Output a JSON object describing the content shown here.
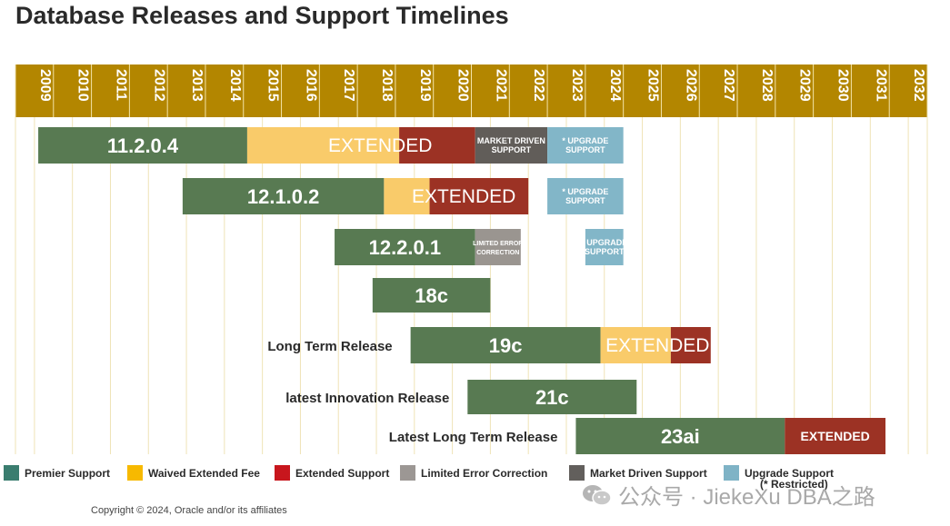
{
  "title": "Database Releases and Support Timelines",
  "copyright": "Copyright © 2024, Oracle and/or its affiliates",
  "watermark": "公众号 · JiekeXu DBA之路",
  "chart_data": {
    "type": "gantt",
    "years": [
      "2009",
      "2010",
      "2011",
      "2012",
      "2013",
      "2014",
      "2015",
      "2016",
      "2017",
      "2018",
      "2019",
      "2020",
      "2021",
      "2022",
      "2023",
      "2024",
      "2025",
      "2026",
      "2027",
      "2028",
      "2029",
      "2030",
      "2031",
      "2032"
    ],
    "colors": {
      "premier": "#587a52",
      "waived": "#f9cb6a",
      "extended": "#9c3224",
      "limited": "#9a9590",
      "market": "#615d59",
      "upgrade": "#82b6c8",
      "header": "#b38600"
    },
    "legend": [
      {
        "key": "premier",
        "label": "Premier Support",
        "color": "#3a7d6f"
      },
      {
        "key": "waived",
        "label": "Waived Extended Fee",
        "color": "#f7b900"
      },
      {
        "key": "extended",
        "label": "Extended Support",
        "color": "#c8161d"
      },
      {
        "key": "limited",
        "label": "Limited Error Correction",
        "color": "#9c9794"
      },
      {
        "key": "market",
        "label": "Market Driven Support",
        "color": "#625f5c"
      },
      {
        "key": "upgrade",
        "label": "Upgrade Support",
        "sublabel": "(* Restricted)",
        "color": "#7fb3c6"
      }
    ],
    "releases": [
      {
        "name": "11.2.0.4",
        "note": "",
        "segments": [
          {
            "type": "premier",
            "start": 2009.1,
            "end": 2014.6,
            "text": "11.2.0.4"
          },
          {
            "type": "waived",
            "start": 2014.6,
            "end": 2018.6,
            "text": ""
          },
          {
            "type": "extended",
            "start": 2018.6,
            "end": 2020.6,
            "text": ""
          },
          {
            "type": "market",
            "start": 2020.6,
            "end": 2022.5,
            "text": "MARKET DRIVEN SUPPORT"
          },
          {
            "type": "upgrade",
            "start": 2022.5,
            "end": 2024.5,
            "text": "* UPGRADE SUPPORT"
          }
        ],
        "overlay": {
          "text": "EXTENDED",
          "start": 2016.6,
          "end": 2019.6
        }
      },
      {
        "name": "12.1.0.2",
        "note": "",
        "segments": [
          {
            "type": "premier",
            "start": 2012.9,
            "end": 2018.2,
            "text": "12.1.0.2"
          },
          {
            "type": "waived",
            "start": 2018.2,
            "end": 2019.4,
            "text": ""
          },
          {
            "type": "extended",
            "start": 2019.4,
            "end": 2022.0,
            "text": ""
          },
          {
            "type": "upgrade",
            "start": 2022.5,
            "end": 2024.5,
            "text": "* UPGRADE SUPPORT"
          }
        ],
        "overlay": {
          "text": "EXTENDED",
          "start": 2019.0,
          "end": 2021.6
        }
      },
      {
        "name": "12.2.0.1",
        "note": "",
        "segments": [
          {
            "type": "premier",
            "start": 2016.9,
            "end": 2020.6,
            "text": "12.2.0.1"
          },
          {
            "type": "limited",
            "start": 2020.6,
            "end": 2021.8,
            "text": "LIMITED ERROR CORRECTION"
          },
          {
            "type": "upgrade",
            "start": 2023.5,
            "end": 2024.5,
            "text": "* UPGRADE SUPPORT"
          }
        ]
      },
      {
        "name": "18c",
        "note": "",
        "segments": [
          {
            "type": "premier",
            "start": 2017.9,
            "end": 2021.0,
            "text": "18c"
          }
        ]
      },
      {
        "name": "19c",
        "note": "Long Term Release",
        "segments": [
          {
            "type": "premier",
            "start": 2018.9,
            "end": 2023.9,
            "text": "19c"
          },
          {
            "type": "waived",
            "start": 2023.9,
            "end": 2025.75,
            "text": ""
          },
          {
            "type": "extended",
            "start": 2025.75,
            "end": 2026.8,
            "text": ""
          }
        ],
        "overlay": {
          "text": "EXTENDED",
          "start": 2024.2,
          "end": 2026.6
        }
      },
      {
        "name": "21c",
        "note": "latest Innovation Release",
        "segments": [
          {
            "type": "premier",
            "start": 2020.4,
            "end": 2024.85,
            "text": "21c"
          }
        ]
      },
      {
        "name": "23ai",
        "note": "Latest Long Term Release",
        "segments": [
          {
            "type": "premier",
            "start": 2023.25,
            "end": 2028.75,
            "text": "23ai"
          },
          {
            "type": "extended",
            "start": 2028.75,
            "end": 2031.4,
            "text": "EXTENDED"
          }
        ]
      }
    ]
  }
}
